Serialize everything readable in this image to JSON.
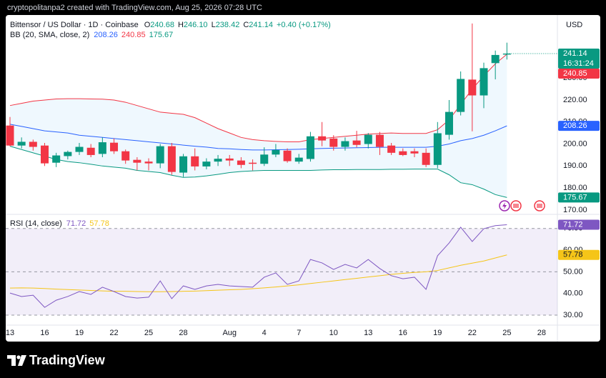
{
  "header": "cryptopolitanpa2 created with TradingView.com, Aug 25, 2026 07:28 UTC",
  "footer": "TradingView",
  "chart_data": {
    "type": "candlestick",
    "title": "Bittensor / US Dollar · 1D · Coinbase",
    "ohlc_legend": [
      {
        "prefix": "O",
        "label": "240.68"
      },
      {
        "prefix": "H",
        "label": "246.10"
      },
      {
        "prefix": "L",
        "label": "238.42"
      },
      {
        "prefix": "C",
        "label": "241.14"
      }
    ],
    "change_label": "+0.40 (+0.17%)",
    "currency": "USD",
    "countdown": "16:31:24",
    "up_color": "#089981",
    "down_color": "#f23645",
    "xlim": [
      -0.37,
      47.37
    ],
    "xticks": [
      {
        "value": 0,
        "label": "13"
      },
      {
        "value": 3,
        "label": "16"
      },
      {
        "value": 6,
        "label": "19"
      },
      {
        "value": 9,
        "label": "22"
      },
      {
        "value": 12,
        "label": "25"
      },
      {
        "value": 15,
        "label": "28"
      },
      {
        "value": 19,
        "label": "Aug"
      },
      {
        "value": 22,
        "label": "4"
      },
      {
        "value": 25,
        "label": "7"
      },
      {
        "value": 28,
        "label": "10"
      },
      {
        "value": 31,
        "label": "13"
      },
      {
        "value": 34,
        "label": "16"
      },
      {
        "value": 37,
        "label": "19"
      },
      {
        "value": 40,
        "label": "22"
      },
      {
        "value": 43,
        "label": "25"
      },
      {
        "value": 46,
        "label": "28"
      }
    ],
    "ylim": [
      168,
      259
    ],
    "yticks": [
      {
        "value": 170,
        "label": "170.00"
      },
      {
        "value": 180,
        "label": "180.00"
      },
      {
        "value": 190,
        "label": "190.00"
      },
      {
        "value": 200,
        "label": "200.00"
      },
      {
        "value": 210,
        "label": "210.00"
      },
      {
        "value": 220,
        "label": "220.00"
      },
      {
        "value": 230,
        "label": "230.00"
      }
    ],
    "open": [
      208.4,
      199.3,
      201,
      199.3,
      191.5,
      194.5,
      196.4,
      198.3,
      195.5,
      200.6,
      196.7,
      192.8,
      192,
      191.2,
      199,
      187,
      194.4,
      189.8,
      192,
      193.4,
      192.5,
      191.5,
      191,
      195.2,
      197,
      192,
      193.2,
      203.5,
      202.5,
      198.7,
      201.6,
      200,
      204.2,
      199.3,
      196.7,
      196.7,
      196,
      190.5,
      204.2,
      214.6,
      229.3,
      222.1,
      236.8,
      240.68
    ],
    "high": [
      212.3,
      203,
      202,
      200.5,
      196,
      197,
      200.5,
      200,
      203,
      202.5,
      197.5,
      194,
      193.5,
      200,
      200.5,
      195.5,
      198,
      193.5,
      195,
      195,
      194,
      193,
      198.5,
      200,
      198,
      195.5,
      205.5,
      210,
      204,
      203,
      206,
      205,
      205.5,
      200.5,
      198,
      198,
      198,
      210,
      220,
      233,
      254.8,
      237,
      242.5,
      246.1
    ],
    "low": [
      199,
      198,
      197,
      190,
      189.5,
      193,
      195,
      194,
      194,
      195.5,
      191,
      188,
      188,
      189,
      186,
      185,
      188,
      188.5,
      190,
      190,
      189,
      188,
      190,
      194,
      191.5,
      191,
      192,
      199,
      197,
      197,
      198.5,
      198,
      195,
      195,
      194.5,
      194,
      189.5,
      189,
      202,
      213,
      205.8,
      216.3,
      229.4,
      238.42
    ],
    "close": [
      199.3,
      201,
      198.7,
      191.2,
      194.8,
      196.4,
      198.7,
      195,
      200.8,
      196.7,
      192.5,
      191.5,
      191.2,
      199,
      187.3,
      194.4,
      189.8,
      192,
      193.3,
      192.5,
      190.5,
      191,
      195.2,
      197.3,
      192.2,
      193.8,
      203.5,
      201.6,
      198.7,
      201.3,
      199.6,
      204.2,
      198.7,
      196,
      195,
      195.7,
      190.5,
      204.9,
      214.6,
      229.6,
      222.1,
      234.5,
      240.5,
      241.14
    ],
    "bb": {
      "label": "BB (20, SMA, close, 2)",
      "basis_color": "#2962ff",
      "upper_color": "#f23645",
      "lower_color": "#089981",
      "basis": [
        209,
        208,
        207,
        206,
        205.5,
        205,
        204,
        203.5,
        203,
        202.5,
        202,
        201.5,
        201,
        200.5,
        200,
        199.5,
        199,
        198.6,
        198,
        197.8,
        197.5,
        197.3,
        197.3,
        197.4,
        197.5,
        197.6,
        197.8,
        198,
        198.1,
        198.2,
        198.3,
        198.4,
        198.5,
        198.5,
        198.5,
        198.5,
        198.5,
        199,
        200,
        201.5,
        202.5,
        204,
        206,
        208.26
      ],
      "upper": [
        217.5,
        218.5,
        219.5,
        220,
        220.5,
        220.6,
        220.6,
        220.5,
        220.4,
        220,
        219,
        217.5,
        216,
        214.5,
        214,
        213.5,
        212,
        209.5,
        207,
        205,
        203,
        202,
        201.5,
        201.2,
        201,
        201,
        202,
        202.5,
        203,
        203.5,
        204,
        204.5,
        204.8,
        205,
        204.8,
        204.8,
        204.8,
        206.5,
        211,
        218,
        225,
        231,
        236.5,
        240.85
      ],
      "lower": [
        199,
        197.5,
        196,
        194.5,
        193,
        192,
        191.5,
        190.8,
        190,
        189.5,
        189,
        188,
        187.5,
        187,
        185.8,
        184.8,
        185,
        185.5,
        186.2,
        187,
        187.5,
        187.8,
        188,
        188,
        188,
        188,
        188,
        188.2,
        188.3,
        188.3,
        188.4,
        188.4,
        188.4,
        188.5,
        188.5,
        188.6,
        188.6,
        188.6,
        186,
        182.4,
        181.5,
        179.5,
        177,
        175.67
      ]
    },
    "rsi": {
      "label": "RSI (14, close)",
      "color": "#7e57c2",
      "sma_color": "#f5c518",
      "ylim": [
        25.4,
        76.5
      ],
      "yticks": [
        {
          "value": 30,
          "label": "30.00"
        },
        {
          "value": 40,
          "label": "40.00"
        },
        {
          "value": 50,
          "label": "50.00"
        },
        {
          "value": 60,
          "label": "60.00"
        },
        {
          "value": 70,
          "label": "70.00"
        }
      ],
      "band": [
        30,
        70
      ],
      "mid": 50,
      "values": [
        40.2,
        38.6,
        39.2,
        33.6,
        36.9,
        38.6,
        40.9,
        39.6,
        42.9,
        40.9,
        38.6,
        37.9,
        38.3,
        45.8,
        37.6,
        43.5,
        41.9,
        43.5,
        44.2,
        43.5,
        43.2,
        42.9,
        47.5,
        49.5,
        44.2,
        45.8,
        55.7,
        54.1,
        51.1,
        53.4,
        51.8,
        55.7,
        51.5,
        48.2,
        46.8,
        47.5,
        41.9,
        57.4,
        63.3,
        70.6,
        64,
        69.9,
        71.3,
        71.72
      ],
      "sma": [
        42.5,
        42.6,
        42.5,
        42.3,
        42,
        41.8,
        41.6,
        41.4,
        41.2,
        41,
        41,
        40.9,
        40.8,
        40.8,
        40.9,
        41,
        41.1,
        41.3,
        41.5,
        41.7,
        41.9,
        42.2,
        42.6,
        43,
        43.5,
        44,
        44.6,
        45.2,
        45.8,
        46.4,
        47,
        47.6,
        48.2,
        48.8,
        49.3,
        49.7,
        50,
        50.6,
        51.8,
        53,
        54,
        55,
        56.4,
        57.78
      ]
    }
  }
}
